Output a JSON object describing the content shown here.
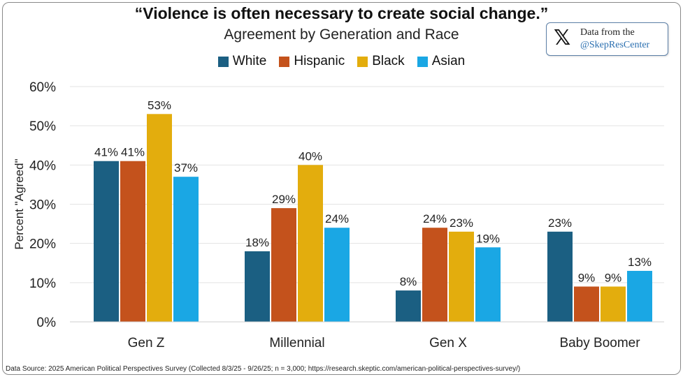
{
  "title": "“Violence is often necessary to create social change.”",
  "subtitle": "Agreement by Generation and Race",
  "badge": {
    "icon": "x-logo-icon",
    "line1": "Data from the",
    "line2": "@SkepResCenter"
  },
  "source": "Data Source: 2025 American Political Perspectives Survey (Collected 8/3/25 - 9/26/25; n = 3,000; https://research.skeptic.com/american-political-perspectives-survey/)",
  "chart_data": {
    "type": "bar",
    "title": "“Violence is often necessary to create social change.”",
    "subtitle": "Agreement by Generation and Race",
    "xlabel": "",
    "ylabel": "Percent \"Agreed\"",
    "ylim": [
      0,
      60
    ],
    "yticks": [
      0,
      10,
      20,
      30,
      40,
      50,
      60
    ],
    "ytick_labels": [
      "0%",
      "10%",
      "20%",
      "30%",
      "40%",
      "50%",
      "60%"
    ],
    "grid": true,
    "legend_position": "top-center",
    "categories": [
      "Gen Z",
      "Millennial",
      "Gen X",
      "Baby Boomer"
    ],
    "series": [
      {
        "name": "White",
        "color": "#1b5f82",
        "values": [
          41,
          18,
          8,
          23
        ]
      },
      {
        "name": "Hispanic",
        "color": "#c4521c",
        "values": [
          41,
          29,
          24,
          9
        ]
      },
      {
        "name": "Black",
        "color": "#e3ad0d",
        "values": [
          53,
          40,
          23,
          9
        ]
      },
      {
        "name": "Asian",
        "color": "#1aa7e4",
        "values": [
          37,
          24,
          19,
          13
        ]
      }
    ]
  }
}
